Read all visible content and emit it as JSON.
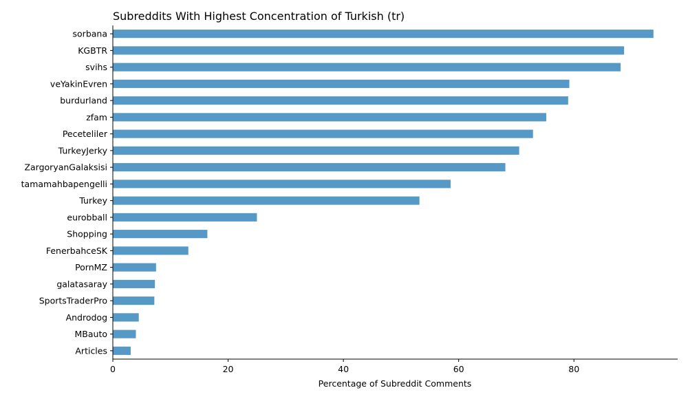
{
  "chart_data": {
    "type": "bar",
    "orientation": "horizontal",
    "title": "Subreddits With Highest Concentration of Turkish (tr)",
    "xlabel": "Percentage of Subreddit Comments",
    "ylabel": "",
    "xlim": [
      0,
      98
    ],
    "xticks": [
      0,
      20,
      40,
      60,
      80
    ],
    "bar_color": "#5699c6",
    "categories": [
      "sorbana",
      "KGBTR",
      "svihs",
      "veYakinEvren",
      "burdurland",
      "zfam",
      "Peceteliler",
      "TurkeyJerky",
      "ZargoryanGalaksisi",
      "tamamahbapengelli",
      "Turkey",
      "eurobball",
      "Shopping",
      "FenerbahceSK",
      "PornMZ",
      "galatasaray",
      "SportsTraderPro",
      "Androdog",
      "MBauto",
      "Articles"
    ],
    "values": [
      93.8,
      88.7,
      88.1,
      79.2,
      79.0,
      75.2,
      72.9,
      70.5,
      68.1,
      58.6,
      53.2,
      25.0,
      16.4,
      13.1,
      7.5,
      7.3,
      7.2,
      4.5,
      4.0,
      3.1
    ]
  }
}
